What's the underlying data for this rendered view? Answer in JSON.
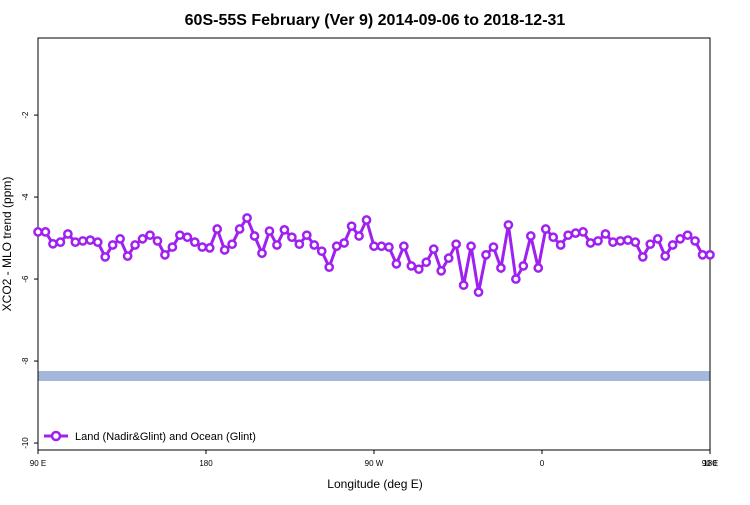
{
  "chart_data": {
    "type": "line",
    "title": "60S-55S February (Ver 9)   2014-09-06 to 2018-12-31",
    "x_label": "Longitude (deg E)",
    "y_label": "XCO2 - MLO trend (ppm)",
    "x": [
      90,
      94,
      98,
      102,
      106,
      110,
      114,
      118,
      122,
      126,
      130,
      134,
      138,
      142,
      146,
      150,
      154,
      158,
      162,
      166,
      170,
      174,
      178,
      182,
      186,
      190,
      194,
      198,
      202,
      206,
      210,
      214,
      218,
      222,
      226,
      230,
      234,
      238,
      242,
      246,
      250,
      254,
      258,
      262,
      266,
      270,
      274,
      278,
      282,
      286,
      290,
      294,
      298,
      302,
      306,
      310,
      314,
      318,
      322,
      326,
      330,
      334,
      338,
      342,
      346,
      350,
      354,
      358,
      362,
      366,
      370,
      374,
      378,
      382,
      386,
      390,
      394,
      398,
      402,
      406,
      410,
      414,
      418,
      422,
      426,
      430,
      434,
      438,
      442,
      446,
      450
    ],
    "series": [
      {
        "name": "Land (Nadir&Glint) and Ocean (Glint)",
        "color": "#a020f0",
        "values": [
          -4.85,
          -4.85,
          -5.14,
          -5.1,
          -4.9,
          -5.1,
          -5.07,
          -5.05,
          -5.1,
          -5.46,
          -5.17,
          -5.02,
          -5.44,
          -5.17,
          -5.02,
          -4.93,
          -5.07,
          -5.41,
          -5.22,
          -4.93,
          -4.98,
          -5.1,
          -5.22,
          -5.24,
          -4.78,
          -5.29,
          -5.15,
          -4.78,
          -4.51,
          -4.95,
          -5.37,
          -4.83,
          -5.17,
          -4.8,
          -4.98,
          -5.15,
          -4.93,
          -5.17,
          -5.32,
          -5.71,
          -5.2,
          -5.12,
          -4.71,
          -4.95,
          -4.56,
          -5.2,
          -5.2,
          -5.22,
          -5.63,
          -5.2,
          -5.68,
          -5.76,
          -5.59,
          -5.27,
          -5.8,
          -5.49,
          -5.15,
          -6.15,
          -5.2,
          -6.32,
          -5.41,
          -5.22,
          -5.73,
          -4.68,
          -6.0,
          -5.68,
          -4.95,
          -5.73,
          -4.78,
          -4.98,
          -5.17,
          -4.93,
          -4.88,
          -4.85,
          -5.12,
          -5.07,
          -4.9,
          -5.1,
          -5.07,
          -5.05,
          -5.1,
          -5.46,
          -5.15,
          -5.02,
          -5.44,
          -5.17,
          -5.02,
          -4.93,
          -5.07,
          -5.41,
          -5.41
        ]
      }
    ],
    "xlim": [
      90,
      450
    ],
    "ylim": [
      -10.17,
      -0.12
    ],
    "xticks": [
      {
        "value": 90,
        "label": "90 E"
      },
      {
        "value": 180,
        "label": "180"
      },
      {
        "value": 270,
        "label": "90 W"
      },
      {
        "value": 360,
        "label": "0"
      },
      {
        "value": 450,
        "label": "90 E"
      },
      {
        "value": 540,
        "label": "180"
      }
    ],
    "yticks": [
      -2,
      -4,
      -6,
      -8,
      -10
    ]
  }
}
